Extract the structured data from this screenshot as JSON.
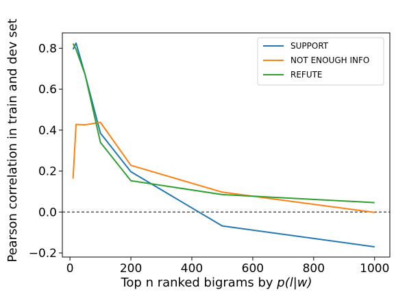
{
  "chart_data": {
    "type": "line",
    "title": "",
    "xlabel": "Top n ranked bigrams by p(l|w)",
    "xlabel_parts": {
      "prefix": "Top n ranked bigrams by ",
      "math": "p(l|w)"
    },
    "ylabel": "Pearson correlation in train and dev set",
    "xlim": [
      -25,
      1050
    ],
    "ylim": [
      -0.22,
      0.875
    ],
    "xticks": [
      0,
      200,
      400,
      600,
      800,
      1000
    ],
    "xtick_labels": [
      "0",
      "200",
      "400",
      "600",
      "800",
      "1000"
    ],
    "yticks": [
      -0.2,
      0.0,
      0.2,
      0.4,
      0.6,
      0.8
    ],
    "ytick_labels": [
      "−0.2",
      "0.0",
      "0.2",
      "0.4",
      "0.6",
      "0.8"
    ],
    "reference_line": {
      "y": 0.0,
      "style": "dashed",
      "color": "#000000"
    },
    "legend_position": "top-right",
    "grid": false,
    "series": [
      {
        "name": "SUPPORT",
        "color": "#1f77b4",
        "x": [
          10,
          20,
          50,
          100,
          200,
          500,
          1000
        ],
        "y": [
          0.795,
          0.825,
          0.67,
          0.385,
          0.197,
          -0.068,
          -0.17
        ]
      },
      {
        "name": "NOT ENOUGH INFO",
        "color": "#ff7f0e",
        "x": [
          10,
          20,
          50,
          100,
          200,
          500,
          1000
        ],
        "y": [
          0.163,
          0.428,
          0.426,
          0.438,
          0.228,
          0.097,
          -0.002
        ]
      },
      {
        "name": "REFUTE",
        "color": "#2ca02c",
        "x": [
          10,
          20,
          50,
          100,
          200,
          500,
          1000
        ],
        "y": [
          0.823,
          0.795,
          0.67,
          0.34,
          0.153,
          0.085,
          0.046
        ]
      }
    ]
  }
}
